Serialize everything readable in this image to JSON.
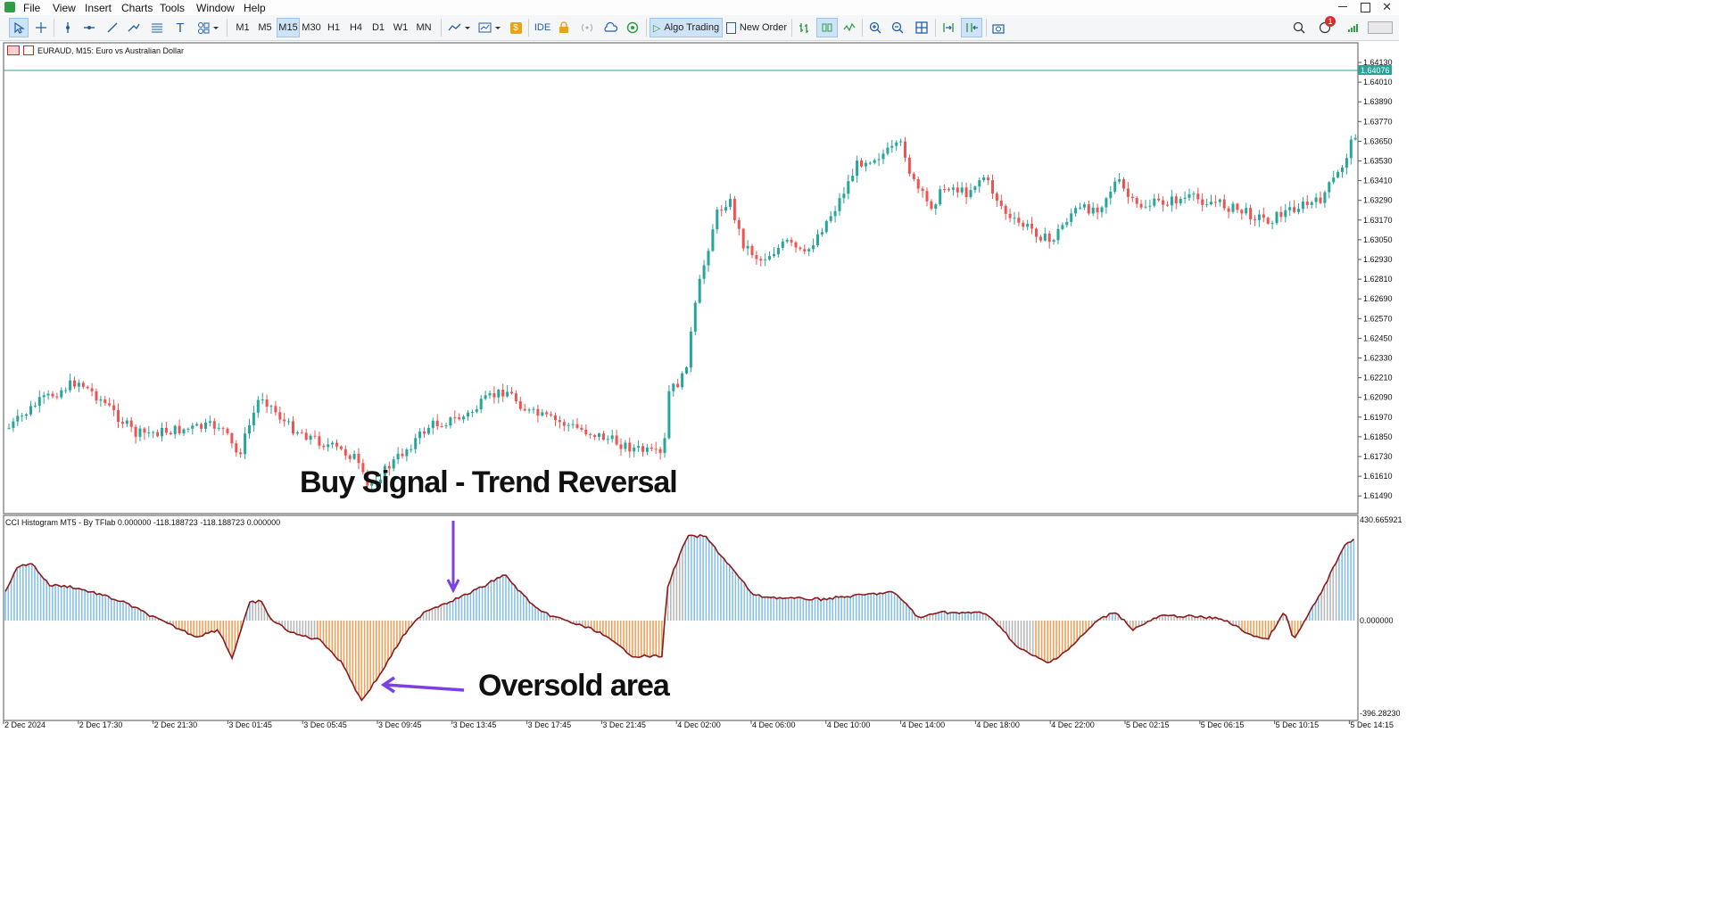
{
  "menu": [
    "File",
    "View",
    "Insert",
    "Charts",
    "Tools",
    "Window",
    "Help"
  ],
  "toolbar": {
    "timeframes": [
      "M1",
      "M5",
      "M15",
      "M30",
      "H1",
      "H4",
      "D1",
      "W1",
      "MN"
    ],
    "active_timeframe": "M15",
    "ide_label": "IDE",
    "algo_label": "Algo Trading",
    "order_label": "New Order",
    "notification_count": "1"
  },
  "chart": {
    "title": "EURAUD, M15:  Euro vs Australian Dollar",
    "price_labels": [
      "1.64130",
      "1.64010",
      "1.63890",
      "1.63770",
      "1.63650",
      "1.63530",
      "1.63410",
      "1.63290",
      "1.63170",
      "1.63050",
      "1.62930",
      "1.62810",
      "1.62690",
      "1.62570",
      "1.62450",
      "1.62330",
      "1.62210",
      "1.62090",
      "1.61970",
      "1.61850",
      "1.61730",
      "1.61610",
      "1.61490"
    ],
    "current_price": "1.64076",
    "time_labels": [
      "2 Dec 2024",
      "2 Dec 17:30",
      "2 Dec 21:30",
      "3 Dec 01:45",
      "3 Dec 05:45",
      "3 Dec 09:45",
      "3 Dec 13:45",
      "3 Dec 17:45",
      "3 Dec 21:45",
      "4 Dec 02:00",
      "4 Dec 06:00",
      "4 Dec 10:00",
      "4 Dec 14:00",
      "4 Dec 18:00",
      "4 Dec 22:00",
      "5 Dec 02:15",
      "5 Dec 06:15",
      "5 Dec 10:15",
      "5 Dec 14:15"
    ],
    "bull_color": "#26a69a",
    "bear_color": "#ef5350"
  },
  "indicator": {
    "title": "CCI Histogram MT5 - By TFlab 0.000000 -118.188723 -118.188723 0.000000",
    "scale_max": "430.665921",
    "scale_zero": "0.000000",
    "scale_min": "-396.28230",
    "colors": {
      "bull": "#87bfe6",
      "bear": "#f0a05a",
      "neutral": "#b8b8b8",
      "line": "#8b1a1a"
    }
  },
  "annotations": {
    "buy_signal": "Buy Signal - Trend Reversal",
    "oversold": "Oversold area",
    "arrow_color": "#7b3fe4"
  }
}
